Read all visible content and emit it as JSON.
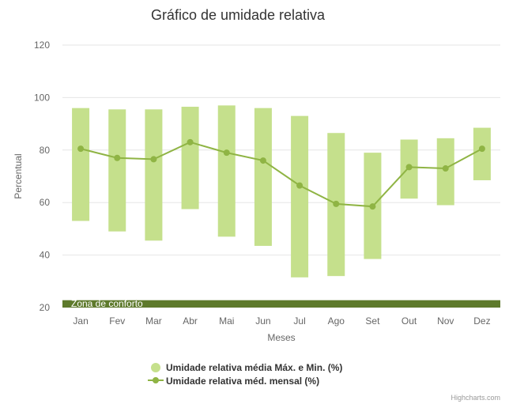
{
  "chart_data": {
    "type": "columnrange+line",
    "title": "Gráfico de umidade relativa",
    "xlabel": "Meses",
    "ylabel": "Percentual",
    "ylim": [
      20,
      120
    ],
    "yticks": [
      20,
      40,
      60,
      80,
      100,
      120
    ],
    "categories": [
      "Jan",
      "Fev",
      "Mar",
      "Abr",
      "Mai",
      "Jun",
      "Jul",
      "Ago",
      "Set",
      "Out",
      "Nov",
      "Dez"
    ],
    "series": [
      {
        "name": "Umidade relativa média Máx. e Min. (%)",
        "type": "columnrange",
        "color": "#c5e08c",
        "low": [
          53,
          49,
          45.5,
          57.5,
          47,
          43.5,
          31.5,
          32,
          38.5,
          61.5,
          59,
          68.5
        ],
        "high": [
          96,
          95.5,
          95.5,
          96.5,
          97,
          96,
          93,
          86.5,
          79,
          84,
          84.5,
          88.5
        ]
      },
      {
        "name": "Umidade relativa méd. mensal (%)",
        "type": "line",
        "color": "#8fb444",
        "values": [
          80.5,
          77,
          76.5,
          83,
          79,
          76,
          66.5,
          59.5,
          58.5,
          73.5,
          73,
          80.5
        ]
      }
    ],
    "plot_band": {
      "label": "Zona de conforto",
      "from": 20,
      "to": 22.8,
      "color": "#5e7a2c"
    },
    "credits": "Highcharts.com"
  }
}
